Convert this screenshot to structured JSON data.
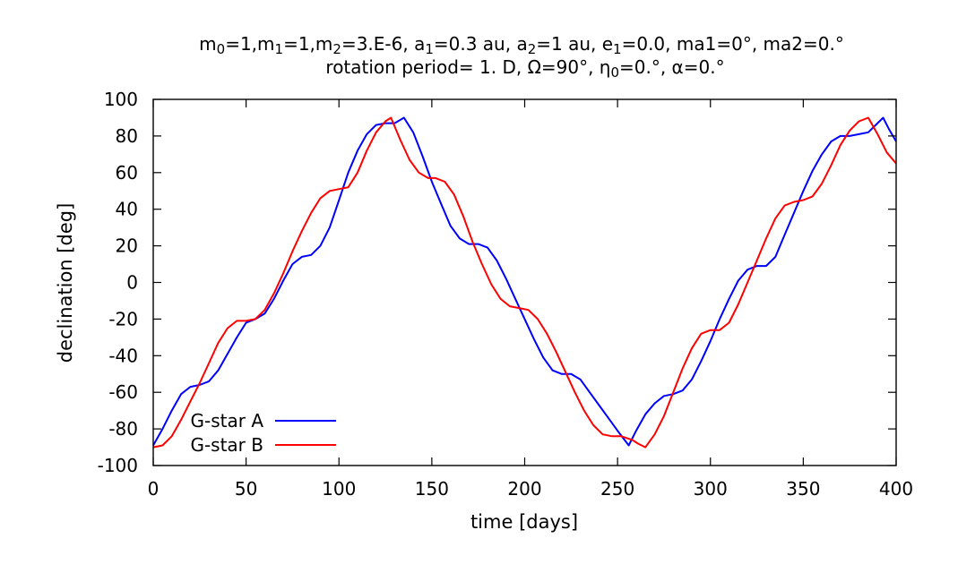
{
  "chart_data": {
    "type": "line",
    "title_line1_parts": [
      {
        "t": "m",
        "s": "normal"
      },
      {
        "t": "0",
        "s": "sub"
      },
      {
        "t": "=1,m",
        "s": "normal"
      },
      {
        "t": "1",
        "s": "sub"
      },
      {
        "t": "=1,m",
        "s": "normal"
      },
      {
        "t": "2",
        "s": "sub"
      },
      {
        "t": "=3.E-6, a",
        "s": "normal"
      },
      {
        "t": "1",
        "s": "sub"
      },
      {
        "t": "=0.3 au, a",
        "s": "normal"
      },
      {
        "t": "2",
        "s": "sub"
      },
      {
        "t": "=1 au, e",
        "s": "normal"
      },
      {
        "t": "1",
        "s": "sub"
      },
      {
        "t": "=0.0, ma1=0°, ma2=0.°",
        "s": "normal"
      }
    ],
    "title_line2_parts": [
      {
        "t": "rotation period= 1. D, Ω=90°, η",
        "s": "normal"
      },
      {
        "t": "0",
        "s": "sub"
      },
      {
        "t": "=0.°, α=0.°",
        "s": "normal"
      }
    ],
    "xlabel": "time [days]",
    "ylabel": "declination [deg]",
    "xlim": [
      0,
      400
    ],
    "ylim": [
      -100,
      100
    ],
    "xticks": [
      0,
      50,
      100,
      150,
      200,
      250,
      300,
      350,
      400
    ],
    "yticks": [
      -100,
      -80,
      -60,
      -40,
      -20,
      0,
      20,
      40,
      60,
      80,
      100
    ],
    "grid": false,
    "legend_position": "bottom-left",
    "series": [
      {
        "name": "G-star A",
        "color": "#0000ff",
        "x": [
          0,
          5,
          10,
          15,
          20,
          25,
          30,
          35,
          40,
          45,
          50,
          55,
          60,
          65,
          70,
          75,
          80,
          85,
          90,
          95,
          100,
          105,
          110,
          115,
          120,
          125,
          130,
          135,
          140,
          145,
          150,
          155,
          160,
          165,
          170,
          175,
          180,
          185,
          190,
          195,
          200,
          205,
          210,
          215,
          220,
          225,
          230,
          235,
          240,
          245,
          250,
          256,
          260,
          265,
          270,
          275,
          280,
          285,
          290,
          295,
          300,
          305,
          310,
          315,
          320,
          325,
          330,
          335,
          340,
          345,
          350,
          355,
          360,
          365,
          370,
          375,
          380,
          385,
          388,
          393,
          396,
          400
        ],
        "y": [
          -89,
          -80,
          -70,
          -61,
          -57,
          -56,
          -54,
          -48,
          -39,
          -30,
          -22,
          -20,
          -17,
          -9,
          1,
          10,
          14,
          15,
          20,
          30,
          45,
          60,
          72,
          81,
          86,
          87,
          87,
          90,
          82,
          69,
          55,
          43,
          31,
          24,
          21,
          21,
          19,
          12,
          2,
          -9,
          -20,
          -31,
          -41,
          -48,
          -50,
          -50,
          -53,
          -60,
          -67,
          -74,
          -81,
          -89,
          -81,
          -72,
          -66,
          -62,
          -61,
          -59,
          -53,
          -43,
          -32,
          -20,
          -9,
          1,
          7,
          9,
          9,
          14,
          26,
          38,
          50,
          61,
          70,
          77,
          80,
          80,
          81,
          82,
          85,
          90,
          84,
          77
        ]
      },
      {
        "name": "G-star B",
        "color": "#ff0000",
        "x": [
          0,
          5,
          10,
          15,
          20,
          25,
          30,
          35,
          40,
          45,
          50,
          55,
          60,
          65,
          70,
          75,
          80,
          85,
          90,
          95,
          100,
          105,
          110,
          115,
          120,
          125,
          128,
          133,
          138,
          143,
          148,
          152,
          157,
          162,
          167,
          172,
          177,
          182,
          187,
          192,
          197,
          202,
          207,
          212,
          217,
          222,
          227,
          232,
          237,
          242,
          247,
          252,
          258,
          261,
          265,
          270,
          275,
          280,
          285,
          290,
          295,
          300,
          305,
          310,
          315,
          320,
          325,
          330,
          335,
          340,
          345,
          350,
          355,
          360,
          365,
          370,
          375,
          380,
          385,
          390,
          395,
          400
        ],
        "y": [
          -90,
          -89,
          -84,
          -75,
          -65,
          -55,
          -44,
          -33,
          -25,
          -21,
          -21,
          -20,
          -15,
          -6,
          5,
          17,
          28,
          38,
          46,
          50,
          51,
          52,
          60,
          72,
          82,
          88,
          90,
          78,
          67,
          60,
          57,
          57,
          55,
          48,
          36,
          22,
          10,
          -1,
          -9,
          -13,
          -14,
          -15,
          -20,
          -28,
          -38,
          -49,
          -60,
          -70,
          -78,
          -83,
          -84,
          -84,
          -86,
          -88,
          -90,
          -83,
          -73,
          -60,
          -47,
          -36,
          -28,
          -26,
          -26,
          -22,
          -12,
          0,
          12,
          24,
          35,
          42,
          44,
          45,
          47,
          54,
          64,
          75,
          83,
          88,
          90,
          81,
          71,
          65
        ]
      }
    ]
  }
}
